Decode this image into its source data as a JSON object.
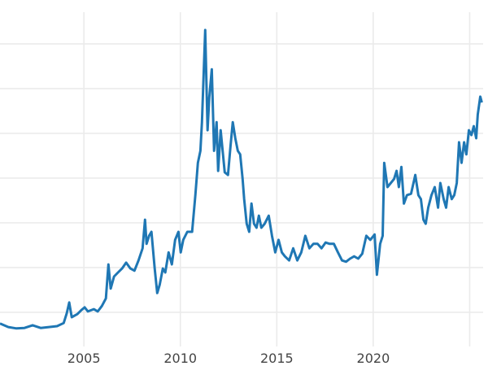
{
  "chart_data": {
    "type": "line",
    "title": "",
    "xlabel": "",
    "ylabel": "",
    "xlim": [
      2000.65,
      2025.95
    ],
    "ylim": [
      0,
      7.98
    ],
    "grid": true,
    "x_ticks": [
      2005,
      2010,
      2015,
      2020,
      2025
    ],
    "x_tick_labels": [
      "2005",
      "2010",
      "2015",
      "2020",
      ""
    ],
    "y_gridlines": [
      1,
      2,
      3,
      4,
      5,
      6,
      7
    ],
    "y_tick_labels_shown": false,
    "line_color": "#1f77b4",
    "series": [
      {
        "x": [
          2000.65,
          2001.08,
          2001.5,
          2001.92,
          2002.34,
          2002.76,
          2003.19,
          2003.61,
          2003.95,
          2004.11,
          2004.24,
          2004.37,
          2004.66,
          2004.87,
          2005.04,
          2005.21,
          2005.51,
          2005.72,
          2005.93,
          2006.14,
          2006.27,
          2006.39,
          2006.56,
          2006.77,
          2006.98,
          2007.19,
          2007.41,
          2007.62,
          2007.83,
          2008.04,
          2008.17,
          2008.25,
          2008.38,
          2008.5,
          2008.67,
          2008.8,
          2008.93,
          2009.09,
          2009.22,
          2009.39,
          2009.56,
          2009.73,
          2009.9,
          2010.02,
          2010.15,
          2010.36,
          2010.61,
          2010.78,
          2010.91,
          2011.04,
          2011.12,
          2011.29,
          2011.41,
          2011.5,
          2011.63,
          2011.75,
          2011.88,
          2011.96,
          2012.09,
          2012.17,
          2012.3,
          2012.47,
          2012.6,
          2012.72,
          2012.85,
          2012.98,
          2013.1,
          2013.23,
          2013.31,
          2013.44,
          2013.57,
          2013.69,
          2013.82,
          2013.95,
          2014.07,
          2014.2,
          2014.37,
          2014.58,
          2014.75,
          2014.92,
          2015.09,
          2015.26,
          2015.42,
          2015.64,
          2015.85,
          2016.06,
          2016.27,
          2016.48,
          2016.69,
          2016.9,
          2017.11,
          2017.32,
          2017.53,
          2017.74,
          2017.96,
          2018.17,
          2018.38,
          2018.59,
          2018.8,
          2019.01,
          2019.22,
          2019.43,
          2019.64,
          2019.85,
          2020.07,
          2020.19,
          2020.36,
          2020.49,
          2020.57,
          2020.74,
          2020.91,
          2021.08,
          2021.21,
          2021.33,
          2021.46,
          2021.59,
          2021.75,
          2021.96,
          2022.18,
          2022.34,
          2022.47,
          2022.6,
          2022.72,
          2022.85,
          2023.02,
          2023.19,
          2023.36,
          2023.48,
          2023.65,
          2023.78,
          2023.91,
          2024.07,
          2024.2,
          2024.33,
          2024.45,
          2024.58,
          2024.71,
          2024.83,
          2024.96,
          2025.09,
          2025.21,
          2025.34,
          2025.42,
          2025.55,
          2025.63
        ],
        "y": [
          0.75,
          0.67,
          0.64,
          0.65,
          0.71,
          0.65,
          0.67,
          0.69,
          0.76,
          0.98,
          1.22,
          0.89,
          0.96,
          1.05,
          1.11,
          1.02,
          1.07,
          1.02,
          1.14,
          1.31,
          2.07,
          1.53,
          1.8,
          1.89,
          1.98,
          2.11,
          1.98,
          1.93,
          2.16,
          2.43,
          3.07,
          2.53,
          2.71,
          2.8,
          1.98,
          1.43,
          1.62,
          1.98,
          1.89,
          2.34,
          2.07,
          2.62,
          2.8,
          2.34,
          2.62,
          2.8,
          2.8,
          3.62,
          4.34,
          4.61,
          5.25,
          7.31,
          5.07,
          5.8,
          6.43,
          4.61,
          5.25,
          4.16,
          5.07,
          4.71,
          4.13,
          4.07,
          4.71,
          5.25,
          4.89,
          4.61,
          4.53,
          3.98,
          3.53,
          2.98,
          2.8,
          3.43,
          2.98,
          2.89,
          3.16,
          2.89,
          2.98,
          3.16,
          2.71,
          2.34,
          2.62,
          2.34,
          2.25,
          2.16,
          2.43,
          2.16,
          2.34,
          2.71,
          2.43,
          2.53,
          2.53,
          2.43,
          2.56,
          2.53,
          2.53,
          2.34,
          2.16,
          2.13,
          2.2,
          2.25,
          2.2,
          2.31,
          2.71,
          2.62,
          2.74,
          1.84,
          2.53,
          2.71,
          4.34,
          3.8,
          3.89,
          3.98,
          4.16,
          3.8,
          4.25,
          3.43,
          3.62,
          3.65,
          4.07,
          3.62,
          3.53,
          3.07,
          2.98,
          3.34,
          3.62,
          3.8,
          3.34,
          3.89,
          3.53,
          3.34,
          3.8,
          3.53,
          3.62,
          3.89,
          4.8,
          4.34,
          4.8,
          4.53,
          5.07,
          4.96,
          5.16,
          4.89,
          5.42,
          5.82,
          5.69
        ]
      }
    ]
  }
}
